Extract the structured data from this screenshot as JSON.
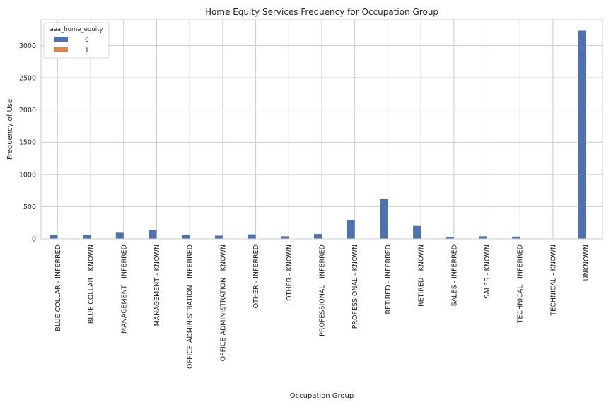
{
  "chart_data": {
    "type": "bar",
    "title": "Home Equity Services Frequency for Occupation Group",
    "xlabel": "Occupation Group",
    "ylabel": "Frequency of Use",
    "ylim": [
      0,
      3400
    ],
    "yticks": [
      0,
      500,
      1000,
      1500,
      2000,
      2500,
      3000
    ],
    "grid": true,
    "legend": {
      "title": "aaa_home_equity",
      "placement": "top-left"
    },
    "categories": [
      "BLUE COLLAR - INFERRED",
      "BLUE COLLAR - KNOWN",
      "MANAGEMENT - INFERRED",
      "MANAGEMENT - KNOWN",
      "OFFICE ADMINISTRATION - INFERRED",
      "OFFICE ADMINISTRATION - KNOWN",
      "OTHER - INFERRED",
      "OTHER - KNOWN",
      "PROFESSIONAL - INFERRED",
      "PROFESSIONAL - KNOWN",
      "RETIRED - INFERRED",
      "RETIRED - KNOWN",
      "SALES - INFERRED",
      "SALES - KNOWN",
      "TECHNICAL - INFERRED",
      "TECHNICAL - KNOWN",
      "UNKNOWN"
    ],
    "series": [
      {
        "name": "0",
        "color": "#4c72b0",
        "values": [
          60,
          60,
          95,
          140,
          60,
          50,
          70,
          40,
          75,
          290,
          620,
          200,
          25,
          40,
          35,
          5,
          3230
        ]
      },
      {
        "name": "1",
        "color": "#dd8452",
        "values": [
          0,
          0,
          0,
          0,
          0,
          0,
          0,
          0,
          0,
          0,
          0,
          0,
          0,
          0,
          0,
          0,
          0
        ]
      }
    ]
  }
}
